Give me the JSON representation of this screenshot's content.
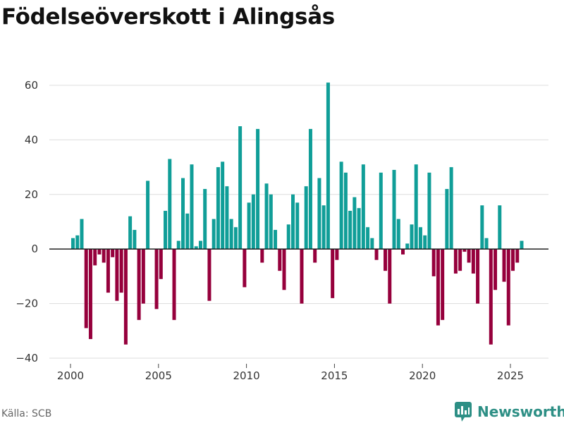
{
  "title": "Födelseöverskott i Alingsås",
  "source": "Källa: SCB",
  "brand": "Newsworthy",
  "colors": {
    "positive": "#109e98",
    "negative": "#96003c",
    "grid": "#dddddd",
    "zero": "#222222",
    "brand": "#2d8f85"
  },
  "chart_data": {
    "type": "bar",
    "title": "Födelseöverskott i Alingsås",
    "xlabel": "",
    "ylabel": "",
    "ylim": [
      -40,
      60
    ],
    "yticks": [
      -40,
      -20,
      0,
      20,
      40,
      60
    ],
    "ytick_labels": [
      "−40",
      "−20",
      "0",
      "20",
      "40",
      "60"
    ],
    "xticks": [
      "2000",
      "2005",
      "2010",
      "2015",
      "2020",
      "2025"
    ],
    "period": "quarterly",
    "start": "2000 Q2",
    "series": [
      {
        "name": "Födelseöverskott",
        "values": [
          4,
          5,
          11,
          -29,
          -33,
          -6,
          -2,
          -5,
          -16,
          -3,
          -19,
          -16,
          -35,
          12,
          7,
          -26,
          -20,
          25,
          0,
          -22,
          -11,
          14,
          33,
          -26,
          3,
          26,
          13,
          31,
          1,
          3,
          22,
          -19,
          11,
          30,
          32,
          23,
          11,
          8,
          45,
          -14,
          17,
          20,
          44,
          -5,
          24,
          20,
          7,
          -8,
          -15,
          9,
          20,
          17,
          -20,
          23,
          44,
          -5,
          26,
          16,
          61,
          -18,
          -4,
          32,
          28,
          14,
          19,
          15,
          31,
          8,
          4,
          -4,
          28,
          -8,
          -20,
          29,
          11,
          -2,
          2,
          9,
          31,
          8,
          5,
          28,
          -10,
          -28,
          -26,
          22,
          30,
          -9,
          -8,
          -1,
          -5,
          -9,
          -20,
          16,
          4,
          -35,
          -15,
          16,
          -12,
          -28,
          -8,
          -5,
          3
        ]
      }
    ]
  }
}
